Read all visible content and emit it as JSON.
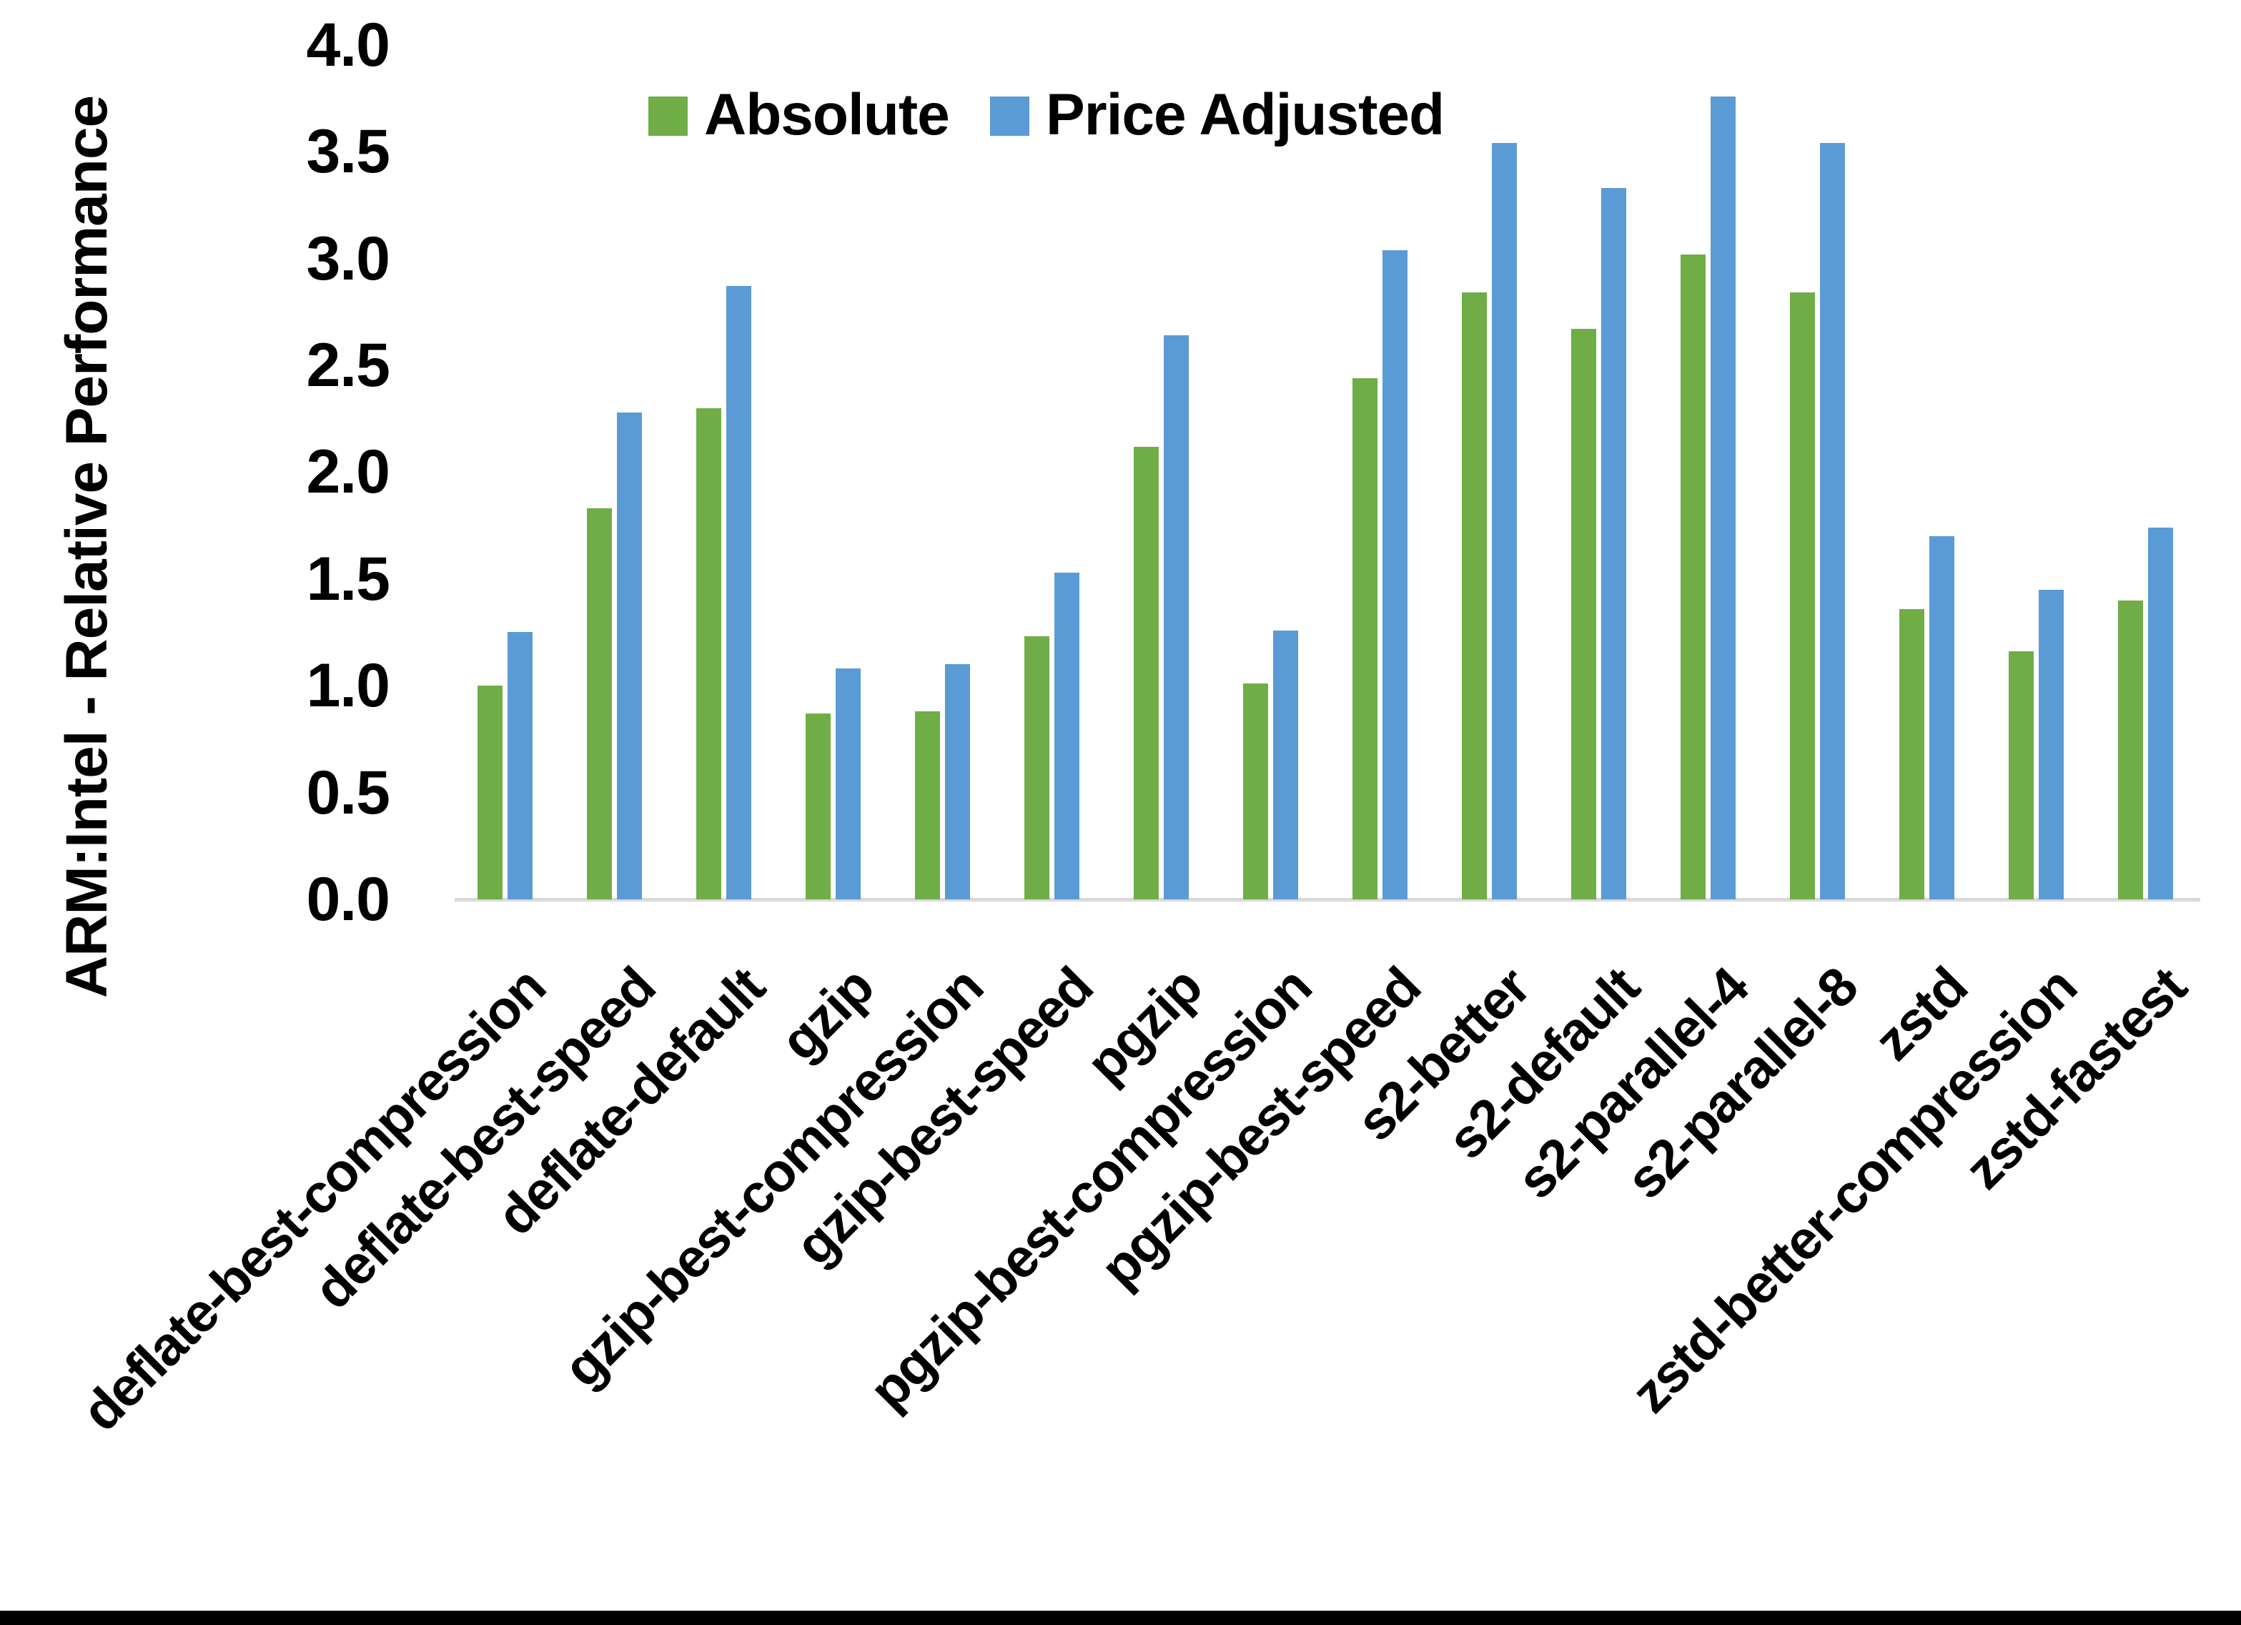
{
  "chart_data": {
    "type": "bar",
    "title": "",
    "xlabel": "",
    "ylabel": "ARM:Intel - Relative Performance",
    "ylim": [
      0.0,
      4.0
    ],
    "ytick_step": 0.5,
    "ytick_labels": [
      "0.0",
      "0.5",
      "1.0",
      "1.5",
      "2.0",
      "2.5",
      "3.0",
      "3.5",
      "4.0"
    ],
    "grid": false,
    "legend_position": "top-center",
    "categories": [
      "deflate-best-compression",
      "deflate-best-speed",
      "deflate-default",
      "gzip",
      "gzip-best-compression",
      "gzip-best-speed",
      "pgzip",
      "pgzip-best-compression",
      "pgzip-best-speed",
      "s2-better",
      "s2-default",
      "s2-parallel-4",
      "s2-parallel-8",
      "zstd",
      "zstd-better-compression",
      "zstd-fastest"
    ],
    "series": [
      {
        "name": "Absolute",
        "color": "#70AD47",
        "values": [
          1.0,
          1.83,
          2.3,
          0.87,
          0.88,
          1.23,
          2.12,
          1.01,
          2.44,
          2.84,
          2.67,
          3.02,
          2.84,
          1.36,
          1.16,
          1.4
        ]
      },
      {
        "name": "Price Adjusted",
        "color": "#5B9BD5",
        "values": [
          1.25,
          2.28,
          2.87,
          1.08,
          1.1,
          1.53,
          2.64,
          1.26,
          3.04,
          3.54,
          3.33,
          3.76,
          3.54,
          1.7,
          1.45,
          1.74
        ]
      }
    ],
    "axis_line_color": "#D9D9D9",
    "text_color": "#000000"
  },
  "frame": {
    "background": "#FFFFFF",
    "bottom_bar_color": "#000000"
  }
}
